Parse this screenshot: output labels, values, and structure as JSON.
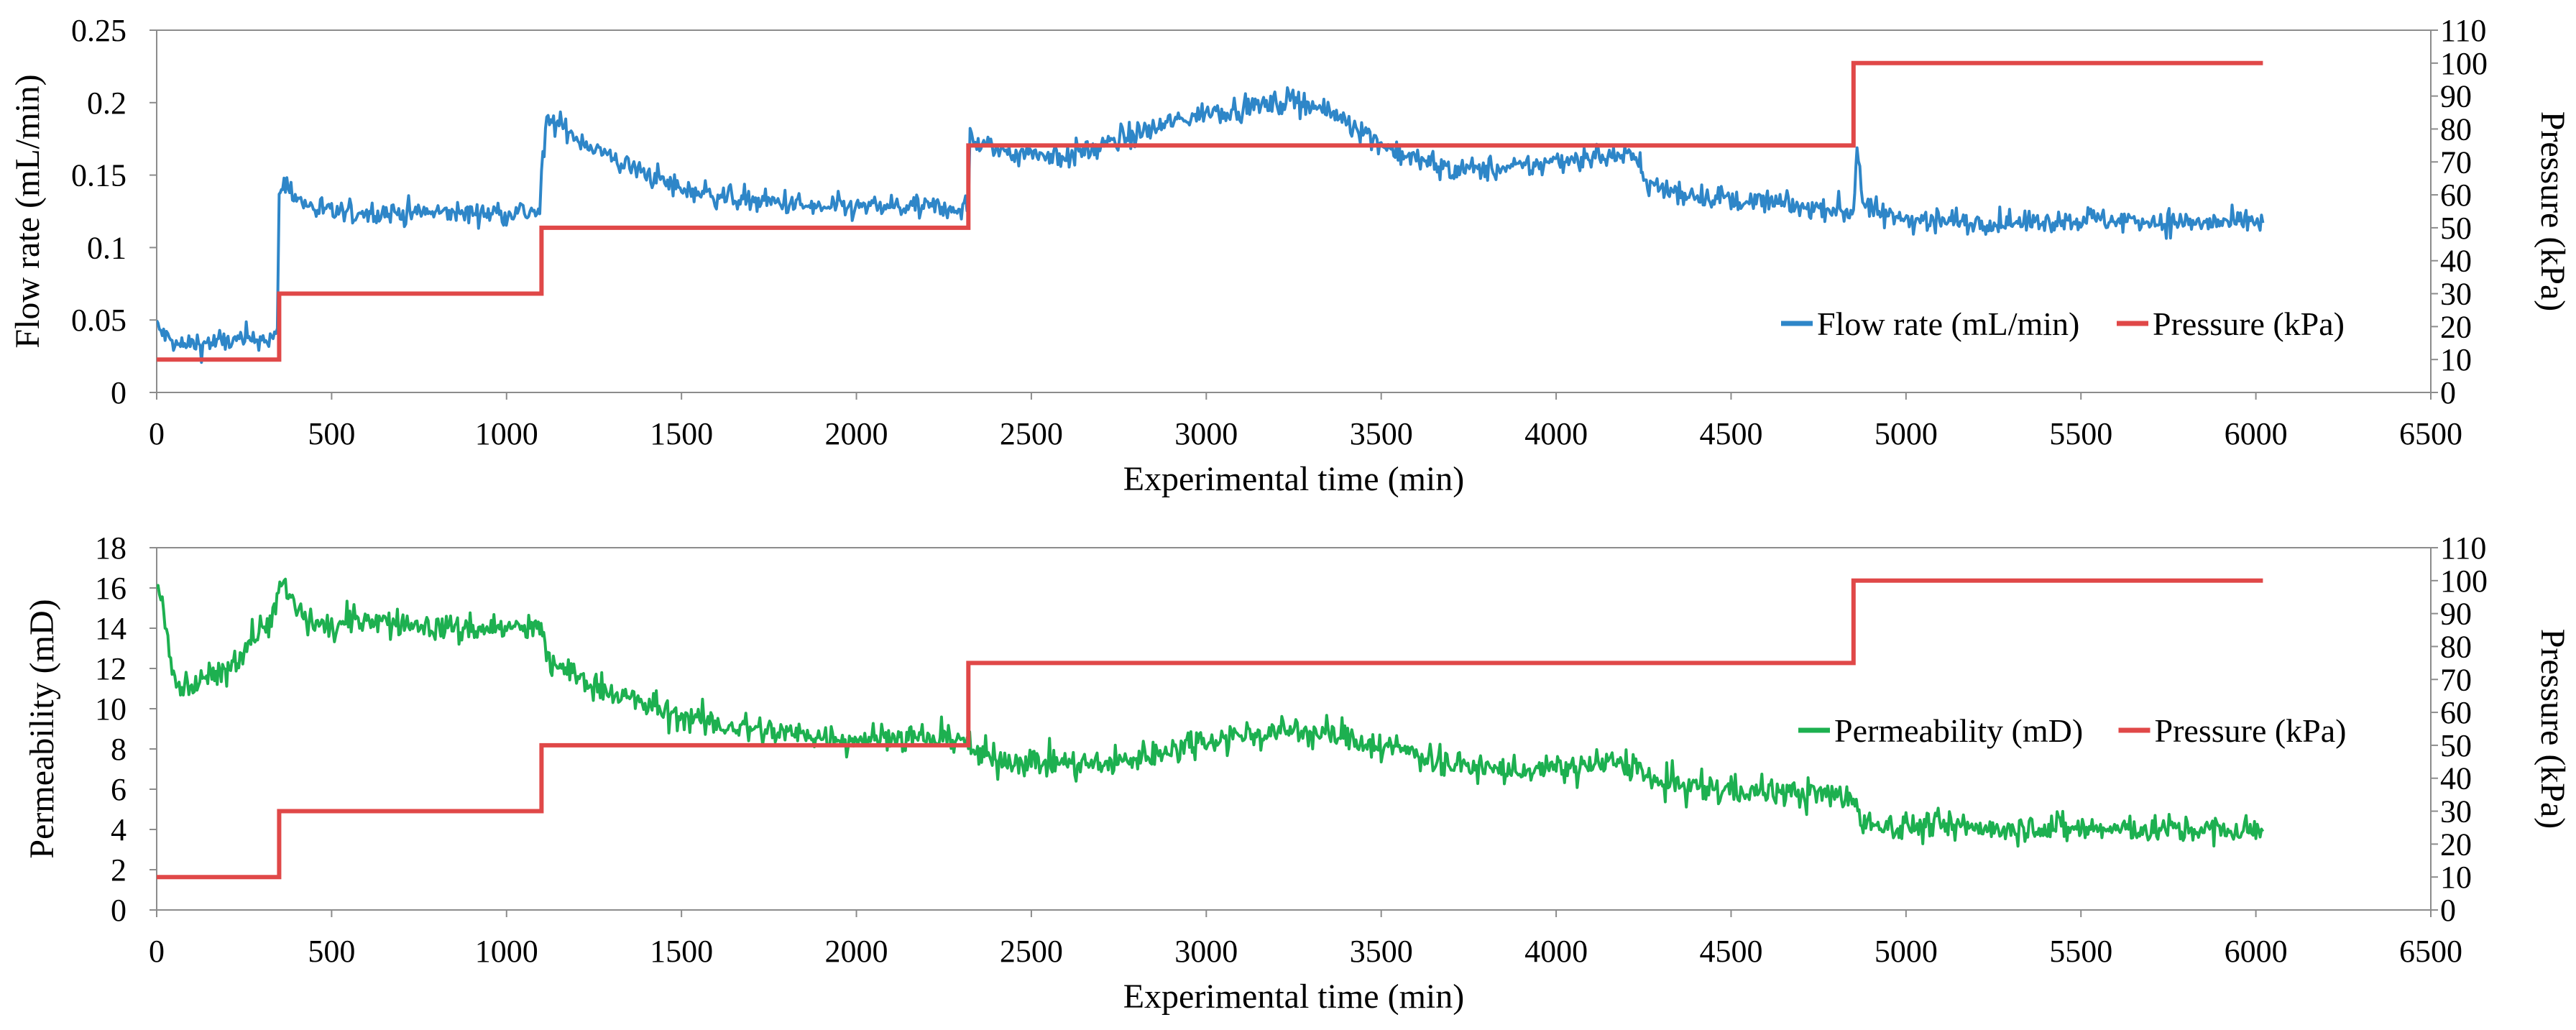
{
  "chart_data": [
    {
      "type": "line",
      "id": "top",
      "xlabel": "Experimental time (min)",
      "ylabel_left": "Flow rate (mL/min)",
      "ylabel_right": "Pressure (kPa)",
      "xlim": [
        0,
        6500
      ],
      "ylim_left": [
        0,
        0.25
      ],
      "ylim_right": [
        0,
        110
      ],
      "xticks": [
        "0",
        "500",
        "1000",
        "1500",
        "2000",
        "2500",
        "3000",
        "3500",
        "4000",
        "4500",
        "5000",
        "5500",
        "6000",
        "6500"
      ],
      "yticks_left": [
        "0",
        "0.05",
        "0.1",
        "0.15",
        "0.2",
        "0.25"
      ],
      "yticks_right": [
        "0",
        "10",
        "20",
        "30",
        "40",
        "50",
        "60",
        "70",
        "80",
        "90",
        "100",
        "110"
      ],
      "legend": [
        "Flow rate (mL/min)",
        "Pressure (kPa)"
      ],
      "legend_position": "lower-right",
      "series": [
        {
          "name": "Flow rate (mL/min)",
          "axis": "left",
          "color": "#2E86C8",
          "noise": 0.004,
          "noise_note": "noisy measurement trace",
          "x": [
            0,
            20,
            60,
            100,
            200,
            300,
            345,
            350,
            360,
            380,
            420,
            500,
            700,
            900,
            1095,
            1100,
            1115,
            1150,
            1200,
            1300,
            1400,
            1500,
            1700,
            1900,
            2100,
            2320,
            2325,
            2340,
            2400,
            2500,
            2600,
            2700,
            2800,
            2900,
            3000,
            3100,
            3200,
            3260,
            3300,
            3400,
            3500,
            3600,
            3700,
            3800,
            3900,
            4000,
            4100,
            4200,
            4240,
            4250,
            4300,
            4400,
            4500,
            4600,
            4700,
            4800,
            4850,
            4860,
            4880,
            4950,
            5100,
            5300,
            5500,
            5700,
            5900,
            6020
          ],
          "y": [
            0.045,
            0.04,
            0.032,
            0.033,
            0.035,
            0.037,
            0.04,
            0.13,
            0.147,
            0.14,
            0.13,
            0.124,
            0.124,
            0.124,
            0.125,
            0.15,
            0.186,
            0.185,
            0.176,
            0.162,
            0.151,
            0.14,
            0.133,
            0.127,
            0.128,
            0.127,
            0.18,
            0.172,
            0.168,
            0.165,
            0.163,
            0.17,
            0.178,
            0.186,
            0.193,
            0.197,
            0.199,
            0.203,
            0.198,
            0.188,
            0.172,
            0.16,
            0.155,
            0.154,
            0.155,
            0.16,
            0.163,
            0.163,
            0.162,
            0.145,
            0.14,
            0.137,
            0.133,
            0.131,
            0.128,
            0.126,
            0.125,
            0.17,
            0.128,
            0.122,
            0.118,
            0.117,
            0.12,
            0.118,
            0.117,
            0.117
          ]
        },
        {
          "name": "Pressure (kPa)",
          "axis": "right",
          "color": "#E04848",
          "x": [
            0,
            350,
            350,
            1100,
            1100,
            2320,
            2320,
            4850,
            4850,
            6020
          ],
          "y": [
            10,
            10,
            30,
            30,
            50,
            50,
            75,
            75,
            100,
            100
          ]
        }
      ]
    },
    {
      "type": "line",
      "id": "bottom",
      "xlabel": "Experimental time (min)",
      "ylabel_left": "Permeability (mD)",
      "ylabel_right": "Pressure (kPa)",
      "xlim": [
        0,
        6500
      ],
      "ylim_left": [
        0,
        18
      ],
      "ylim_right": [
        0,
        110
      ],
      "xticks": [
        "0",
        "500",
        "1000",
        "1500",
        "2000",
        "2500",
        "3000",
        "3500",
        "4000",
        "4500",
        "5000",
        "5500",
        "6000",
        "6500"
      ],
      "yticks_left": [
        "0",
        "2",
        "4",
        "6",
        "8",
        "10",
        "12",
        "14",
        "16",
        "18"
      ],
      "yticks_right": [
        "0",
        "10",
        "20",
        "30",
        "40",
        "50",
        "60",
        "70",
        "80",
        "90",
        "100",
        "110"
      ],
      "legend": [
        "Permeability (mD)",
        "Pressure (kPa)"
      ],
      "legend_position": "right",
      "series": [
        {
          "name": "Permeability (mD)",
          "axis": "left",
          "color": "#1DB050",
          "noise": 0.35,
          "noise_note": "noisy measurement trace",
          "x": [
            0,
            20,
            40,
            60,
            100,
            150,
            200,
            250,
            300,
            340,
            360,
            380,
            420,
            500,
            600,
            700,
            800,
            900,
            1000,
            1095,
            1110,
            1130,
            1200,
            1300,
            1400,
            1500,
            1600,
            1700,
            1800,
            1900,
            2000,
            2100,
            2200,
            2310,
            2320,
            2350,
            2400,
            2500,
            2600,
            2700,
            2800,
            2900,
            3000,
            3100,
            3200,
            3260,
            3300,
            3400,
            3500,
            3600,
            3700,
            3800,
            3900,
            4000,
            4100,
            4200,
            4240,
            4250,
            4300,
            4400,
            4500,
            4600,
            4700,
            4800,
            4850,
            4870,
            4900,
            5000,
            5200,
            5400,
            5600,
            5800,
            6020
          ],
          "y": [
            16,
            15,
            12,
            11,
            11,
            11.5,
            12,
            13,
            14,
            15,
            16.2,
            15.5,
            14.5,
            14,
            14.5,
            14.2,
            14,
            14,
            14,
            14,
            13,
            12.3,
            11.6,
            10.8,
            10.2,
            9.6,
            9.2,
            9,
            8.8,
            8.6,
            8.5,
            8.6,
            8.5,
            8.6,
            8,
            7.7,
            7.5,
            7.4,
            7.3,
            7.2,
            7.5,
            8,
            8.5,
            8.7,
            8.8,
            9,
            8.8,
            8.6,
            8.2,
            7.8,
            7.3,
            7,
            6.9,
            7,
            7.2,
            7.3,
            7.2,
            6.5,
            6.3,
            6.1,
            6,
            5.9,
            5.8,
            5.7,
            5.6,
            4.5,
            4.2,
            4.2,
            4.1,
            4.1,
            4,
            4,
            3.9
          ]
        },
        {
          "name": "Pressure (kPa)",
          "axis": "right",
          "color": "#E04848",
          "x": [
            0,
            350,
            350,
            1100,
            1100,
            2320,
            2320,
            4850,
            4850,
            6020
          ],
          "y": [
            10,
            10,
            30,
            30,
            50,
            50,
            75,
            75,
            100,
            100
          ]
        }
      ]
    }
  ]
}
